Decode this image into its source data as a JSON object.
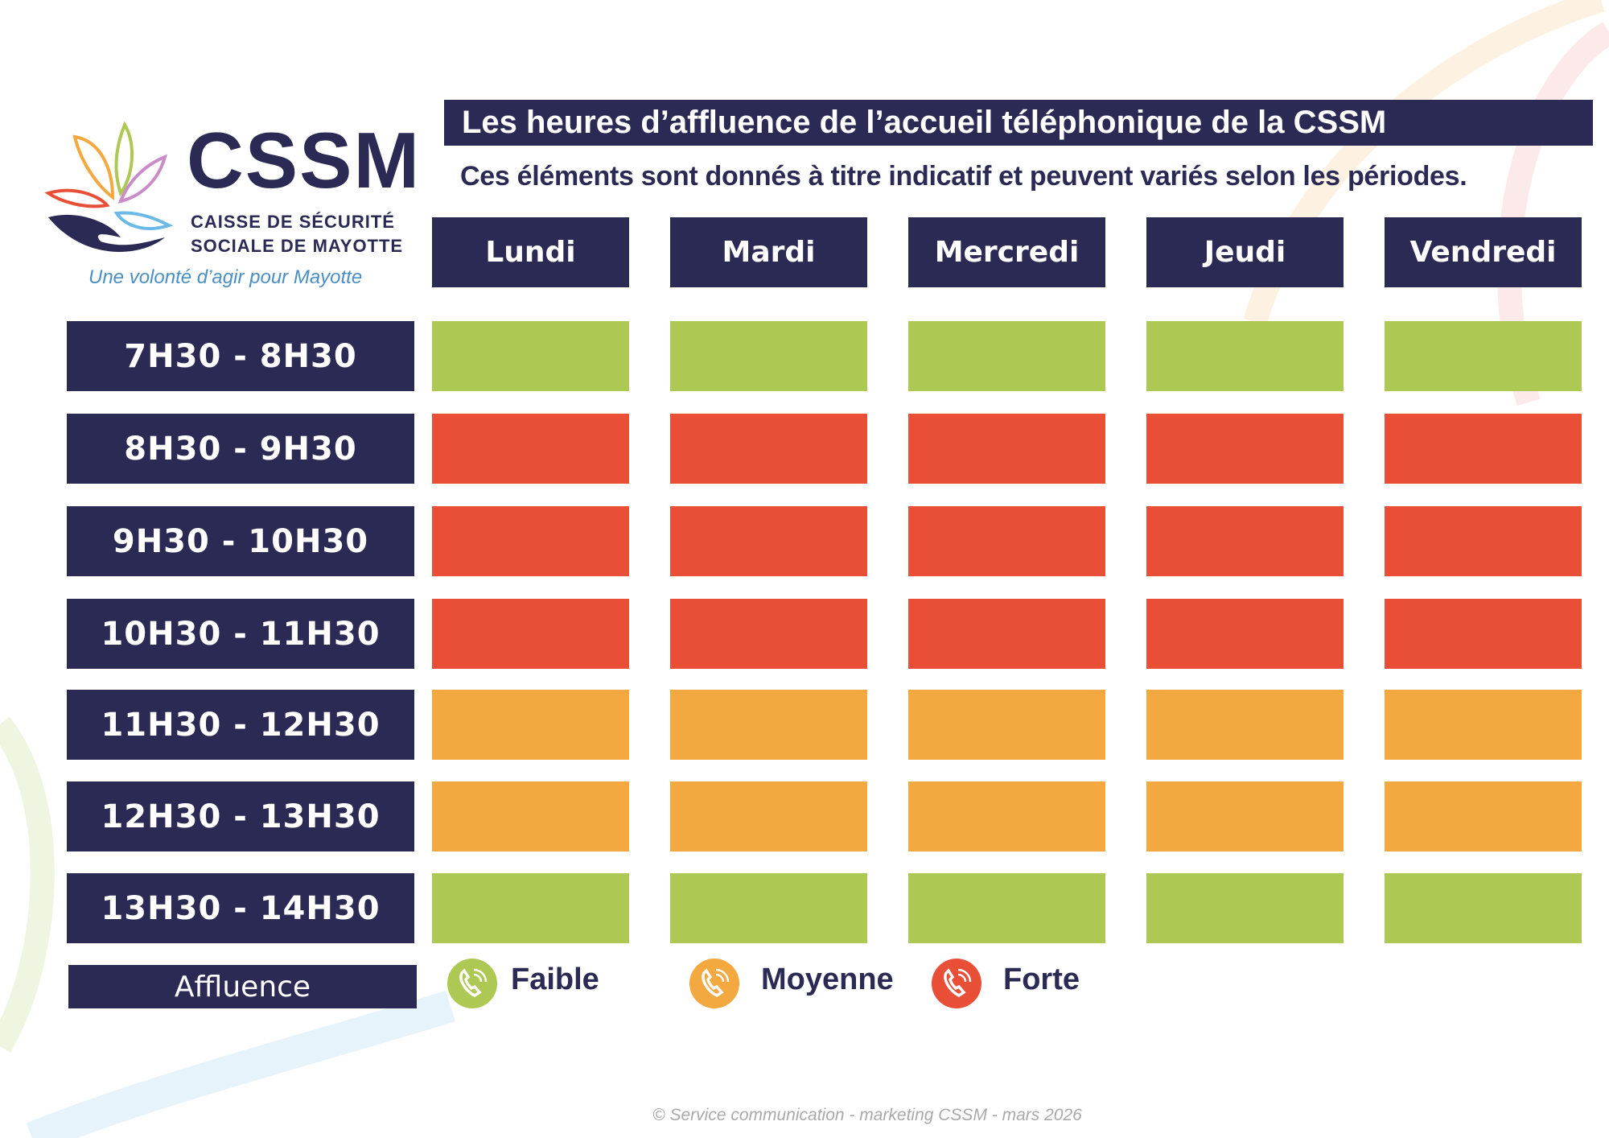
{
  "logo": {
    "name": "CSSM",
    "line1": "CAISSE DE SÉCURITÉ",
    "line2": "SOCIALE DE MAYOTTE",
    "tagline": "Une volonté d’agir pour Mayotte"
  },
  "title": "Les heures d’affluence de l’accueil téléphonique de la CSSM",
  "subtitle": "Ces éléments sont donnés à titre indicatif et peuvent variés selon les périodes.",
  "days": [
    "Lundi",
    "Mardi",
    "Mercredi",
    "Jeudi",
    "Vendredi"
  ],
  "slots": [
    "7H30 - 8H30",
    "8H30 - 9H30",
    "9H30 - 10H30",
    "10H30 - 11H30",
    "11H30 - 12H30",
    "12H30 - 13H30",
    "13H30 - 14H30"
  ],
  "levels": [
    "faible",
    "forte",
    "forte",
    "forte",
    "moyenne",
    "moyenne",
    "faible"
  ],
  "colors": {
    "faible": "#adc954",
    "moyenne": "#f3a840",
    "forte": "#e84f36",
    "navy": "#2b2a55"
  },
  "legend": {
    "label": "Affluence",
    "faible": "Faible",
    "moyenne": "Moyenne",
    "forte": "Forte"
  },
  "footer": "© Service communication - marketing CSSM - mars 2026"
}
